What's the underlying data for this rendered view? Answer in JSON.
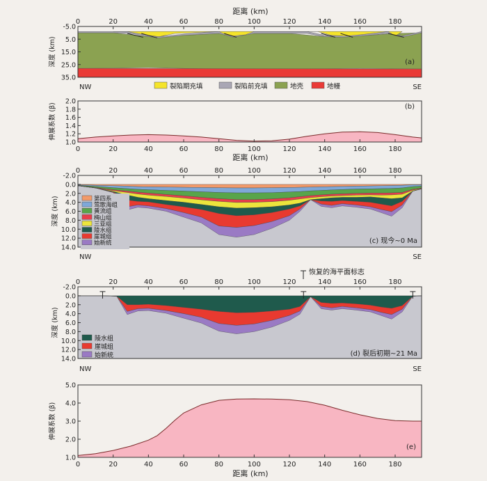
{
  "colors": {
    "syn_rift": "#f5e42a",
    "pre_rift": "#a9a6b4",
    "crust": "#8ba251",
    "mantle": "#ea3a36",
    "beta_fill": "#f8b6c2",
    "beta_line": "#7a2a2a",
    "basement": "#c8c8cf",
    "quaternary": "#f29a6a",
    "yinggehai": "#7fa8d8",
    "huangliu": "#58a54a",
    "meishan": "#e83e4c",
    "sanya": "#ece53c",
    "lingshui": "#1f5a4c",
    "yacheng": "#e83a30",
    "eocene": "#9a7ac4"
  },
  "chart_data": [
    {
      "id": "a",
      "type": "area",
      "panel_label": "(a)",
      "xlabel": "距离 (km)",
      "ylabel": "深度 (km)",
      "xlim": [
        0,
        195
      ],
      "ylim": [
        35,
        -5
      ],
      "xticks": [
        0,
        20,
        40,
        60,
        80,
        100,
        120,
        140,
        160,
        180
      ],
      "yticks": [
        "-5.0",
        "5.0",
        "15.0",
        "25.0",
        "35.0"
      ],
      "left_label": "NW",
      "right_label": "SE",
      "legend": [
        "裂陷期充填",
        "裂陷前充填",
        "地壳",
        "地幔"
      ],
      "series": [
        {
          "name": "裂陷期充填",
          "x": [
            20,
            28,
            40,
            46,
            55,
            80,
            84,
            88,
            95,
            100,
            128,
            136,
            144,
            152,
            160,
            176,
            180,
            184
          ],
          "top": [
            -1,
            -1,
            -1,
            -1,
            -1,
            -1,
            -1,
            -1,
            -1,
            -1,
            -1,
            -1,
            -1,
            -1,
            -1,
            -1,
            -1,
            -1
          ],
          "bottom": [
            -1,
            -1,
            2,
            3,
            0.5,
            -1,
            1.5,
            2.5,
            1.5,
            -1,
            -1,
            -1,
            2,
            2.5,
            1.5,
            -1,
            2.5,
            -1
          ]
        },
        {
          "name": "裂陷前充填",
          "x": [
            0,
            20,
            30,
            40,
            46,
            60,
            80,
            88,
            100,
            130,
            140,
            150,
            160,
            176,
            184,
            195
          ],
          "top": [
            -1,
            -1,
            -1,
            2,
            3,
            1,
            -1,
            2.5,
            -1,
            -1,
            2,
            2.5,
            1.5,
            -1,
            2.5,
            -1
          ],
          "bottom": [
            0,
            0,
            0.5,
            3,
            4,
            2,
            0.5,
            3.5,
            0.5,
            0.5,
            3,
            3.5,
            2.5,
            0.5,
            3.5,
            0
          ]
        },
        {
          "name": "地壳",
          "x": [
            0,
            20,
            40,
            60,
            80,
            100,
            120,
            140,
            160,
            180,
            195
          ],
          "top": [
            0,
            0,
            3,
            2,
            0.5,
            0.5,
            0.5,
            3,
            2.5,
            0.5,
            0
          ],
          "bottom": [
            28,
            27.8,
            27.5,
            28,
            28.5,
            29,
            28.8,
            28.3,
            28,
            28.3,
            28.5
          ]
        },
        {
          "name": "地幔",
          "x": [
            0,
            195
          ],
          "top": [
            28,
            28.5
          ],
          "bottom": [
            35,
            35
          ]
        }
      ]
    },
    {
      "id": "b",
      "type": "area",
      "panel_label": "(b)",
      "xlabel": "距离 (km)",
      "ylabel": "伸展系数 (β)",
      "xlim": [
        0,
        195
      ],
      "ylim": [
        1.0,
        2.0
      ],
      "xticks": [
        0,
        20,
        40,
        60,
        80,
        100,
        120,
        140,
        160,
        180
      ],
      "yticks": [
        "1.0",
        "1.2",
        "1.4",
        "1.6",
        "1.8",
        "2.0"
      ],
      "x": [
        0,
        10,
        20,
        30,
        40,
        50,
        60,
        70,
        80,
        90,
        100,
        110,
        120,
        130,
        140,
        150,
        160,
        170,
        180,
        190,
        195
      ],
      "values": [
        1.08,
        1.12,
        1.15,
        1.17,
        1.18,
        1.17,
        1.15,
        1.12,
        1.08,
        1.04,
        1.02,
        1.03,
        1.07,
        1.14,
        1.2,
        1.24,
        1.25,
        1.23,
        1.18,
        1.12,
        1.1
      ]
    },
    {
      "id": "c",
      "type": "area",
      "panel_label": "(c) 现今~0 Ma",
      "xlabel": "",
      "ylabel": "深度 (km)",
      "xlim": [
        0,
        195
      ],
      "ylim": [
        14,
        -2
      ],
      "xticks": [
        0,
        20,
        40,
        60,
        80,
        100,
        120,
        140,
        160,
        180
      ],
      "yticks": [
        "-2.0",
        "0.0",
        "2.0",
        "4.0",
        "6.0",
        "8.0",
        "10.0",
        "12.0",
        "14.0"
      ],
      "left_label": "NW",
      "right_label": "SE",
      "legend": [
        "第四系",
        "莺歌海组",
        "黄流组",
        "梅山组",
        "三亚组",
        "陵水组",
        "崖城组",
        "始新统"
      ],
      "x": [
        0,
        10,
        20,
        28,
        34,
        40,
        50,
        60,
        70,
        80,
        90,
        100,
        110,
        120,
        126,
        132,
        138,
        144,
        150,
        158,
        166,
        172,
        178,
        184,
        190,
        195
      ],
      "boundaries": [
        [
          0.1,
          0.2,
          0.3,
          0.4,
          0.5,
          0.55,
          0.6,
          0.65,
          0.7,
          0.75,
          0.8,
          0.8,
          0.75,
          0.7,
          0.65,
          0.6,
          0.55,
          0.5,
          0.45,
          0.4,
          0.35,
          0.3,
          0.25,
          0.2,
          0.1,
          0.1
        ],
        [
          0.2,
          0.45,
          0.75,
          0.95,
          1.1,
          1.2,
          1.35,
          1.5,
          1.65,
          1.8,
          1.9,
          1.9,
          1.85,
          1.7,
          1.6,
          1.45,
          1.35,
          1.25,
          1.15,
          1.05,
          1.0,
          0.95,
          0.9,
          0.8,
          0.5,
          0.4
        ],
        [
          0.3,
          0.7,
          1.2,
          1.5,
          1.75,
          1.95,
          2.25,
          2.55,
          2.9,
          3.2,
          3.4,
          3.4,
          3.25,
          3.0,
          2.75,
          2.5,
          2.35,
          2.2,
          2.1,
          2.0,
          1.95,
          1.95,
          1.9,
          1.8,
          1.1,
          0.8
        ],
        [
          0.3,
          0.8,
          1.4,
          1.8,
          2.15,
          2.4,
          2.7,
          3.05,
          3.45,
          3.8,
          4.05,
          4.0,
          3.85,
          3.55,
          3.25,
          2.95,
          2.75,
          2.6,
          2.5,
          2.4,
          2.35,
          2.4,
          2.35,
          2.2,
          1.3,
          0.9
        ],
        [
          0.3,
          0.8,
          1.6,
          2.4,
          2.9,
          3.2,
          3.6,
          4.0,
          4.5,
          5.0,
          5.3,
          5.2,
          5.0,
          4.6,
          4.2,
          3.4,
          3.2,
          3.0,
          2.9,
          2.9,
          2.8,
          3.0,
          3.2,
          3.0,
          1.5,
          1.0
        ],
        [
          0.3,
          0.8,
          1.7,
          3.5,
          3.8,
          3.9,
          4.5,
          5.0,
          5.6,
          6.5,
          7.0,
          6.8,
          6.3,
          5.5,
          4.8,
          3.4,
          3.7,
          3.8,
          3.6,
          3.8,
          4.0,
          4.4,
          4.8,
          3.8,
          1.5,
          1.0
        ],
        [
          0.3,
          0.8,
          1.8,
          5.0,
          4.6,
          4.8,
          5.4,
          6.3,
          7.3,
          9.3,
          9.6,
          9.2,
          8.3,
          7.0,
          5.5,
          3.4,
          4.4,
          4.7,
          4.3,
          4.6,
          5.0,
          5.6,
          6.1,
          4.6,
          1.5,
          1.0
        ],
        [
          0.3,
          0.8,
          1.8,
          5.7,
          5.1,
          5.3,
          6.0,
          7.3,
          8.6,
          11.2,
          11.8,
          11.2,
          9.8,
          8.0,
          6.0,
          3.4,
          4.9,
          5.2,
          4.8,
          5.1,
          5.5,
          6.3,
          7.1,
          5.2,
          1.5,
          1.0
        ]
      ]
    },
    {
      "id": "d",
      "type": "area",
      "panel_label": "(d) 裂后初期~21 Ma",
      "xlabel": "",
      "ylabel": "深度 (km)",
      "xlim": [
        0,
        195
      ],
      "ylim": [
        14,
        -2
      ],
      "xticks": [
        0,
        20,
        40,
        60,
        80,
        100,
        120,
        140,
        160,
        180
      ],
      "yticks": [
        "-2.0",
        "0.0",
        "2.0",
        "4.0",
        "6.0",
        "8.0",
        "10.0",
        "12.0",
        "14.0"
      ],
      "left_label": "NW",
      "right_label": "SE",
      "annotation": "恢复的海平面标志",
      "legend": [
        "陵水组",
        "崖城组",
        "始新统"
      ],
      "x": [
        0,
        14,
        22,
        28,
        34,
        40,
        50,
        60,
        70,
        80,
        90,
        100,
        110,
        120,
        126,
        132,
        138,
        144,
        150,
        158,
        166,
        172,
        178,
        184,
        190,
        195
      ],
      "top": [
        0,
        0,
        0,
        0,
        0,
        0,
        0,
        0,
        0,
        0,
        0,
        0,
        0,
        0,
        0,
        0,
        0,
        0,
        0,
        0,
        0,
        0,
        0,
        0,
        0,
        0
      ],
      "boundaries": [
        [
          0,
          0,
          0.1,
          2.0,
          2.0,
          1.9,
          2.2,
          2.6,
          3.0,
          3.5,
          3.8,
          3.7,
          3.4,
          3.0,
          2.4,
          0.2,
          1.5,
          1.7,
          1.6,
          1.8,
          2.1,
          2.5,
          2.8,
          2.2,
          0.1,
          0
        ],
        [
          0,
          0,
          0.1,
          3.5,
          2.9,
          2.8,
          3.3,
          4.0,
          4.8,
          6.2,
          6.6,
          6.3,
          5.5,
          4.4,
          3.4,
          0.2,
          2.4,
          2.7,
          2.4,
          2.7,
          3.1,
          3.7,
          4.2,
          3.0,
          0.1,
          0
        ],
        [
          0,
          0,
          0.1,
          4.2,
          3.4,
          3.3,
          3.9,
          5.0,
          6.1,
          7.9,
          8.5,
          8.0,
          7.0,
          5.5,
          4.1,
          0.2,
          2.9,
          3.2,
          2.9,
          3.2,
          3.6,
          4.4,
          5.2,
          3.6,
          0.1,
          0
        ]
      ]
    },
    {
      "id": "e",
      "type": "area",
      "panel_label": "(e)",
      "xlabel": "距离 (km)",
      "ylabel": "伸展系数 (β)",
      "xlim": [
        0,
        195
      ],
      "ylim": [
        1.0,
        5.0
      ],
      "xticks": [
        0,
        20,
        40,
        60,
        80,
        100,
        120,
        140,
        160,
        180
      ],
      "yticks": [
        "1.0",
        "2.0",
        "3.0",
        "4.0",
        "5.0"
      ],
      "x": [
        0,
        10,
        20,
        30,
        40,
        45,
        50,
        55,
        60,
        70,
        80,
        90,
        100,
        110,
        120,
        130,
        140,
        150,
        160,
        170,
        180,
        190,
        195
      ],
      "values": [
        1.1,
        1.2,
        1.38,
        1.62,
        1.95,
        2.2,
        2.6,
        3.05,
        3.45,
        3.9,
        4.15,
        4.22,
        4.23,
        4.22,
        4.18,
        4.08,
        3.88,
        3.6,
        3.35,
        3.15,
        3.03,
        3.0,
        3.0
      ]
    }
  ]
}
